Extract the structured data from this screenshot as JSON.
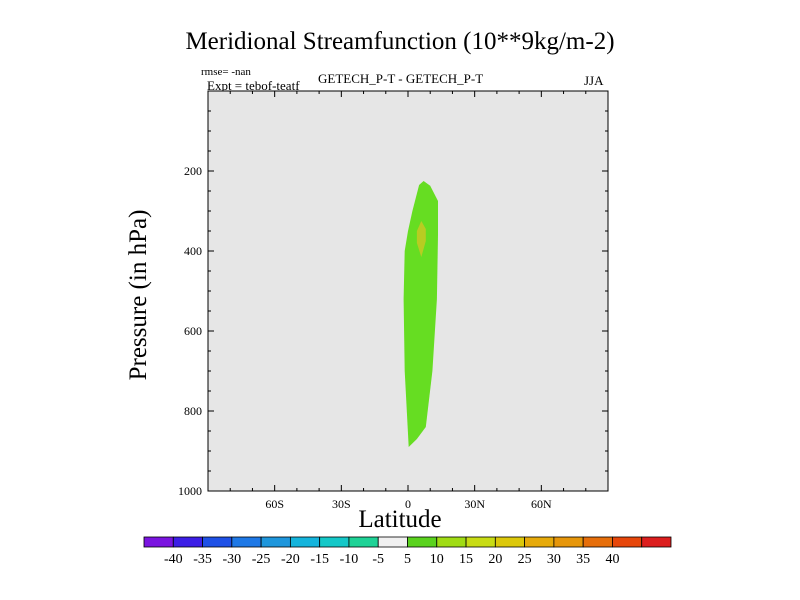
{
  "chart_data": {
    "type": "contour",
    "title": "Meridional Streamfunction (10**9kg/m-2)",
    "subtitle_left_1": "rmse= -nan",
    "subtitle_left_2": "Expt = tebof-teatf",
    "subtitle_center": "GETECH_P-T - GETECH_P-T",
    "subtitle_right": "JJA",
    "xlabel": "Latitude",
    "ylabel": "Pressure (in hPa)",
    "xlim": [
      -90,
      90
    ],
    "ylim": [
      1000,
      0
    ],
    "x_ticks": [
      {
        "value": -60,
        "label": "60S"
      },
      {
        "value": -30,
        "label": "30S"
      },
      {
        "value": 0,
        "label": "0"
      },
      {
        "value": 30,
        "label": "30N"
      },
      {
        "value": 60,
        "label": "60N"
      }
    ],
    "y_ticks": [
      {
        "value": 200,
        "label": "200"
      },
      {
        "value": 400,
        "label": "400"
      },
      {
        "value": 600,
        "label": "600"
      },
      {
        "value": 800,
        "label": "800"
      },
      {
        "value": 1000,
        "label": "1000"
      }
    ],
    "background_color": "#e6e6e6",
    "contour_regions": [
      {
        "name": "5-10 band",
        "color": "#66dd22",
        "polygon": [
          [
            0.3,
            890
          ],
          [
            -1.5,
            700
          ],
          [
            -2,
            520
          ],
          [
            -1.5,
            400
          ],
          [
            0,
            350
          ],
          [
            2,
            300
          ],
          [
            5,
            235
          ],
          [
            7,
            225
          ],
          [
            10,
            237
          ],
          [
            13.5,
            275
          ],
          [
            13.5,
            360
          ],
          [
            13,
            520
          ],
          [
            11,
            700
          ],
          [
            8,
            840
          ],
          [
            4,
            870
          ]
        ]
      },
      {
        "name": "10-15 band",
        "color": "#b8cc22",
        "polygon": [
          [
            6,
            325
          ],
          [
            8,
            345
          ],
          [
            8,
            375
          ],
          [
            6,
            415
          ],
          [
            4,
            380
          ],
          [
            4,
            350
          ]
        ]
      }
    ],
    "colorbar": {
      "colors": [
        "#7a14e0",
        "#3c1ee6",
        "#1e50e6",
        "#1e78e6",
        "#1e96dc",
        "#14b4dc",
        "#14c8c8",
        "#1ed296",
        "#f0f0f0",
        "#5ad21e",
        "#a0dc14",
        "#c8dc14",
        "#dcc80a",
        "#e6aa0a",
        "#e6960a",
        "#e66e0a",
        "#e6460a",
        "#dc1e1e"
      ],
      "labels": [
        "-40",
        "-35",
        "-30",
        "-25",
        "-20",
        "-15",
        "-10",
        "-5",
        "5",
        "10",
        "15",
        "20",
        "25",
        "30",
        "35",
        "40"
      ]
    }
  }
}
